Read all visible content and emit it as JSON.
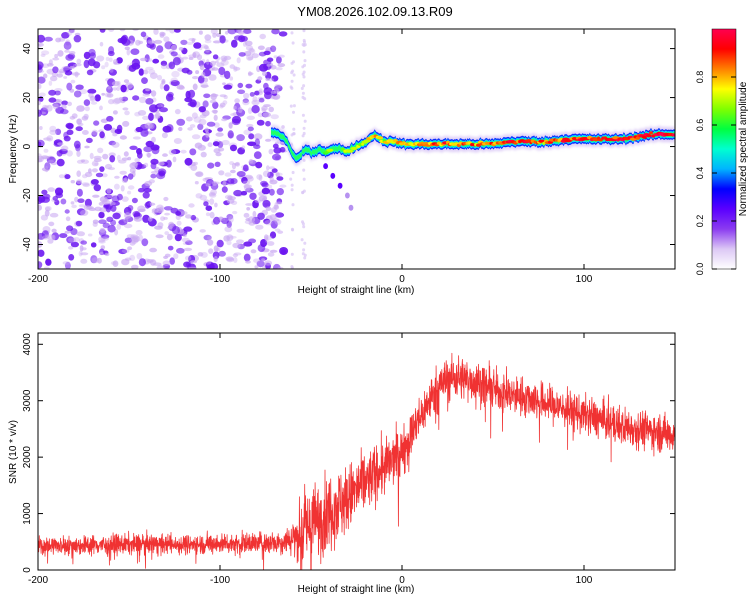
{
  "figure_title": "YM08.2026.102.09.13.R09",
  "chart_data": [
    {
      "type": "heatmap",
      "title": "YM08.2026.102.09.13.R09",
      "xlabel": "Height of straight line (km)",
      "ylabel": "Frequency (Hz)",
      "xlim": [
        -200,
        150
      ],
      "ylim": [
        -50,
        48
      ],
      "xticks": [
        -200,
        -100,
        0,
        100
      ],
      "yticks": [
        -40,
        -20,
        0,
        20,
        40
      ],
      "x_tick_labels": [
        "-200",
        "-100",
        "0",
        "100"
      ],
      "y_tick_labels": [
        "-40",
        "-20",
        "0",
        "20",
        "40"
      ],
      "colorbar": {
        "label": "Normalized spectral amplitude",
        "range": [
          0,
          1
        ],
        "ticks": [
          0.0,
          0.2,
          0.4,
          0.6,
          0.8
        ],
        "tick_labels": [
          "0.0",
          "0.2",
          "0.4",
          "0.6",
          "0.8"
        ],
        "colormap": [
          "#ffffff",
          "#dcc8f5",
          "#8b3cf0",
          "#5a00ff",
          "#0000ff",
          "#00b4ff",
          "#00ffd0",
          "#00ff40",
          "#80ff00",
          "#ffff00",
          "#ff8000",
          "#ff0000",
          "#ff0050"
        ]
      },
      "noise_region": {
        "x_from": -200,
        "x_to": -65,
        "freq_from": -50,
        "freq_to": 48,
        "amplitude_range": [
          0.05,
          0.2
        ]
      },
      "ridge": {
        "x": [
          -72,
          -68,
          -64,
          -62,
          -60,
          -58,
          -56,
          -54,
          -52,
          -50,
          -46,
          -42,
          -38,
          -34,
          -30,
          -26,
          -22,
          -18,
          -15,
          -12,
          -8,
          -4,
          0,
          5,
          10,
          20,
          30,
          40,
          50,
          60,
          70,
          80,
          90,
          100,
          110,
          120,
          130,
          140,
          145,
          150
        ],
        "freq": [
          6,
          5,
          3,
          0,
          -3,
          -5,
          -4,
          -2,
          -1,
          -3,
          -1,
          -2,
          -1,
          -1,
          -2,
          0,
          1,
          3,
          5,
          3,
          2,
          2,
          1,
          1,
          1,
          1,
          1,
          1,
          1,
          2,
          2,
          2,
          3,
          3,
          3,
          3,
          4,
          5,
          5,
          5
        ],
        "amplitude": [
          0.35,
          0.4,
          0.45,
          0.5,
          0.5,
          0.45,
          0.5,
          0.5,
          0.5,
          0.55,
          0.55,
          0.6,
          0.6,
          0.6,
          0.65,
          0.65,
          0.7,
          0.75,
          0.75,
          0.7,
          0.75,
          0.75,
          0.8,
          0.8,
          0.85,
          0.85,
          0.85,
          0.85,
          0.85,
          0.9,
          0.9,
          0.85,
          0.9,
          0.9,
          0.9,
          0.9,
          0.95,
          0.95,
          0.95,
          0.95
        ]
      },
      "tail": {
        "x": [
          -42,
          -38,
          -34,
          -30,
          -28
        ],
        "freq": [
          -8,
          -12,
          -16,
          -20,
          -25
        ]
      }
    },
    {
      "type": "line",
      "xlabel": "Height of straight line (km)",
      "ylabel": "SNR (10 * v/v)",
      "xlim": [
        -200,
        150
      ],
      "ylim": [
        0,
        4200
      ],
      "xticks": [
        -200,
        -100,
        0,
        100
      ],
      "yticks": [
        0,
        1000,
        2000,
        3000,
        4000
      ],
      "x_tick_labels": [
        "-200",
        "-100",
        "0",
        "100"
      ],
      "y_tick_labels": [
        "0",
        "1000",
        "2000",
        "3000",
        "4000"
      ],
      "color": "#f03232",
      "series": [
        {
          "name": "SNR",
          "x": [
            -200,
            -180,
            -160,
            -140,
            -120,
            -100,
            -80,
            -65,
            -58,
            -52,
            -45,
            -38,
            -30,
            -22,
            -15,
            -10,
            -5,
            0,
            5,
            10,
            15,
            20,
            25,
            30,
            40,
            50,
            60,
            70,
            80,
            90,
            100,
            110,
            120,
            130,
            140,
            150
          ],
          "mean": [
            430,
            440,
            450,
            460,
            450,
            470,
            480,
            500,
            600,
            750,
            900,
            1100,
            1250,
            1500,
            1700,
            1800,
            1950,
            2100,
            2400,
            2700,
            3000,
            3250,
            3380,
            3420,
            3350,
            3200,
            3100,
            3050,
            2950,
            2850,
            2750,
            2650,
            2550,
            2500,
            2450,
            2400
          ],
          "spread": [
            150,
            150,
            160,
            160,
            150,
            160,
            170,
            180,
            350,
            650,
            600,
            600,
            550,
            500,
            450,
            450,
            400,
            400,
            350,
            350,
            350,
            350,
            350,
            350,
            320,
            320,
            300,
            300,
            300,
            300,
            300,
            300,
            300,
            300,
            300,
            300
          ]
        }
      ]
    }
  ]
}
